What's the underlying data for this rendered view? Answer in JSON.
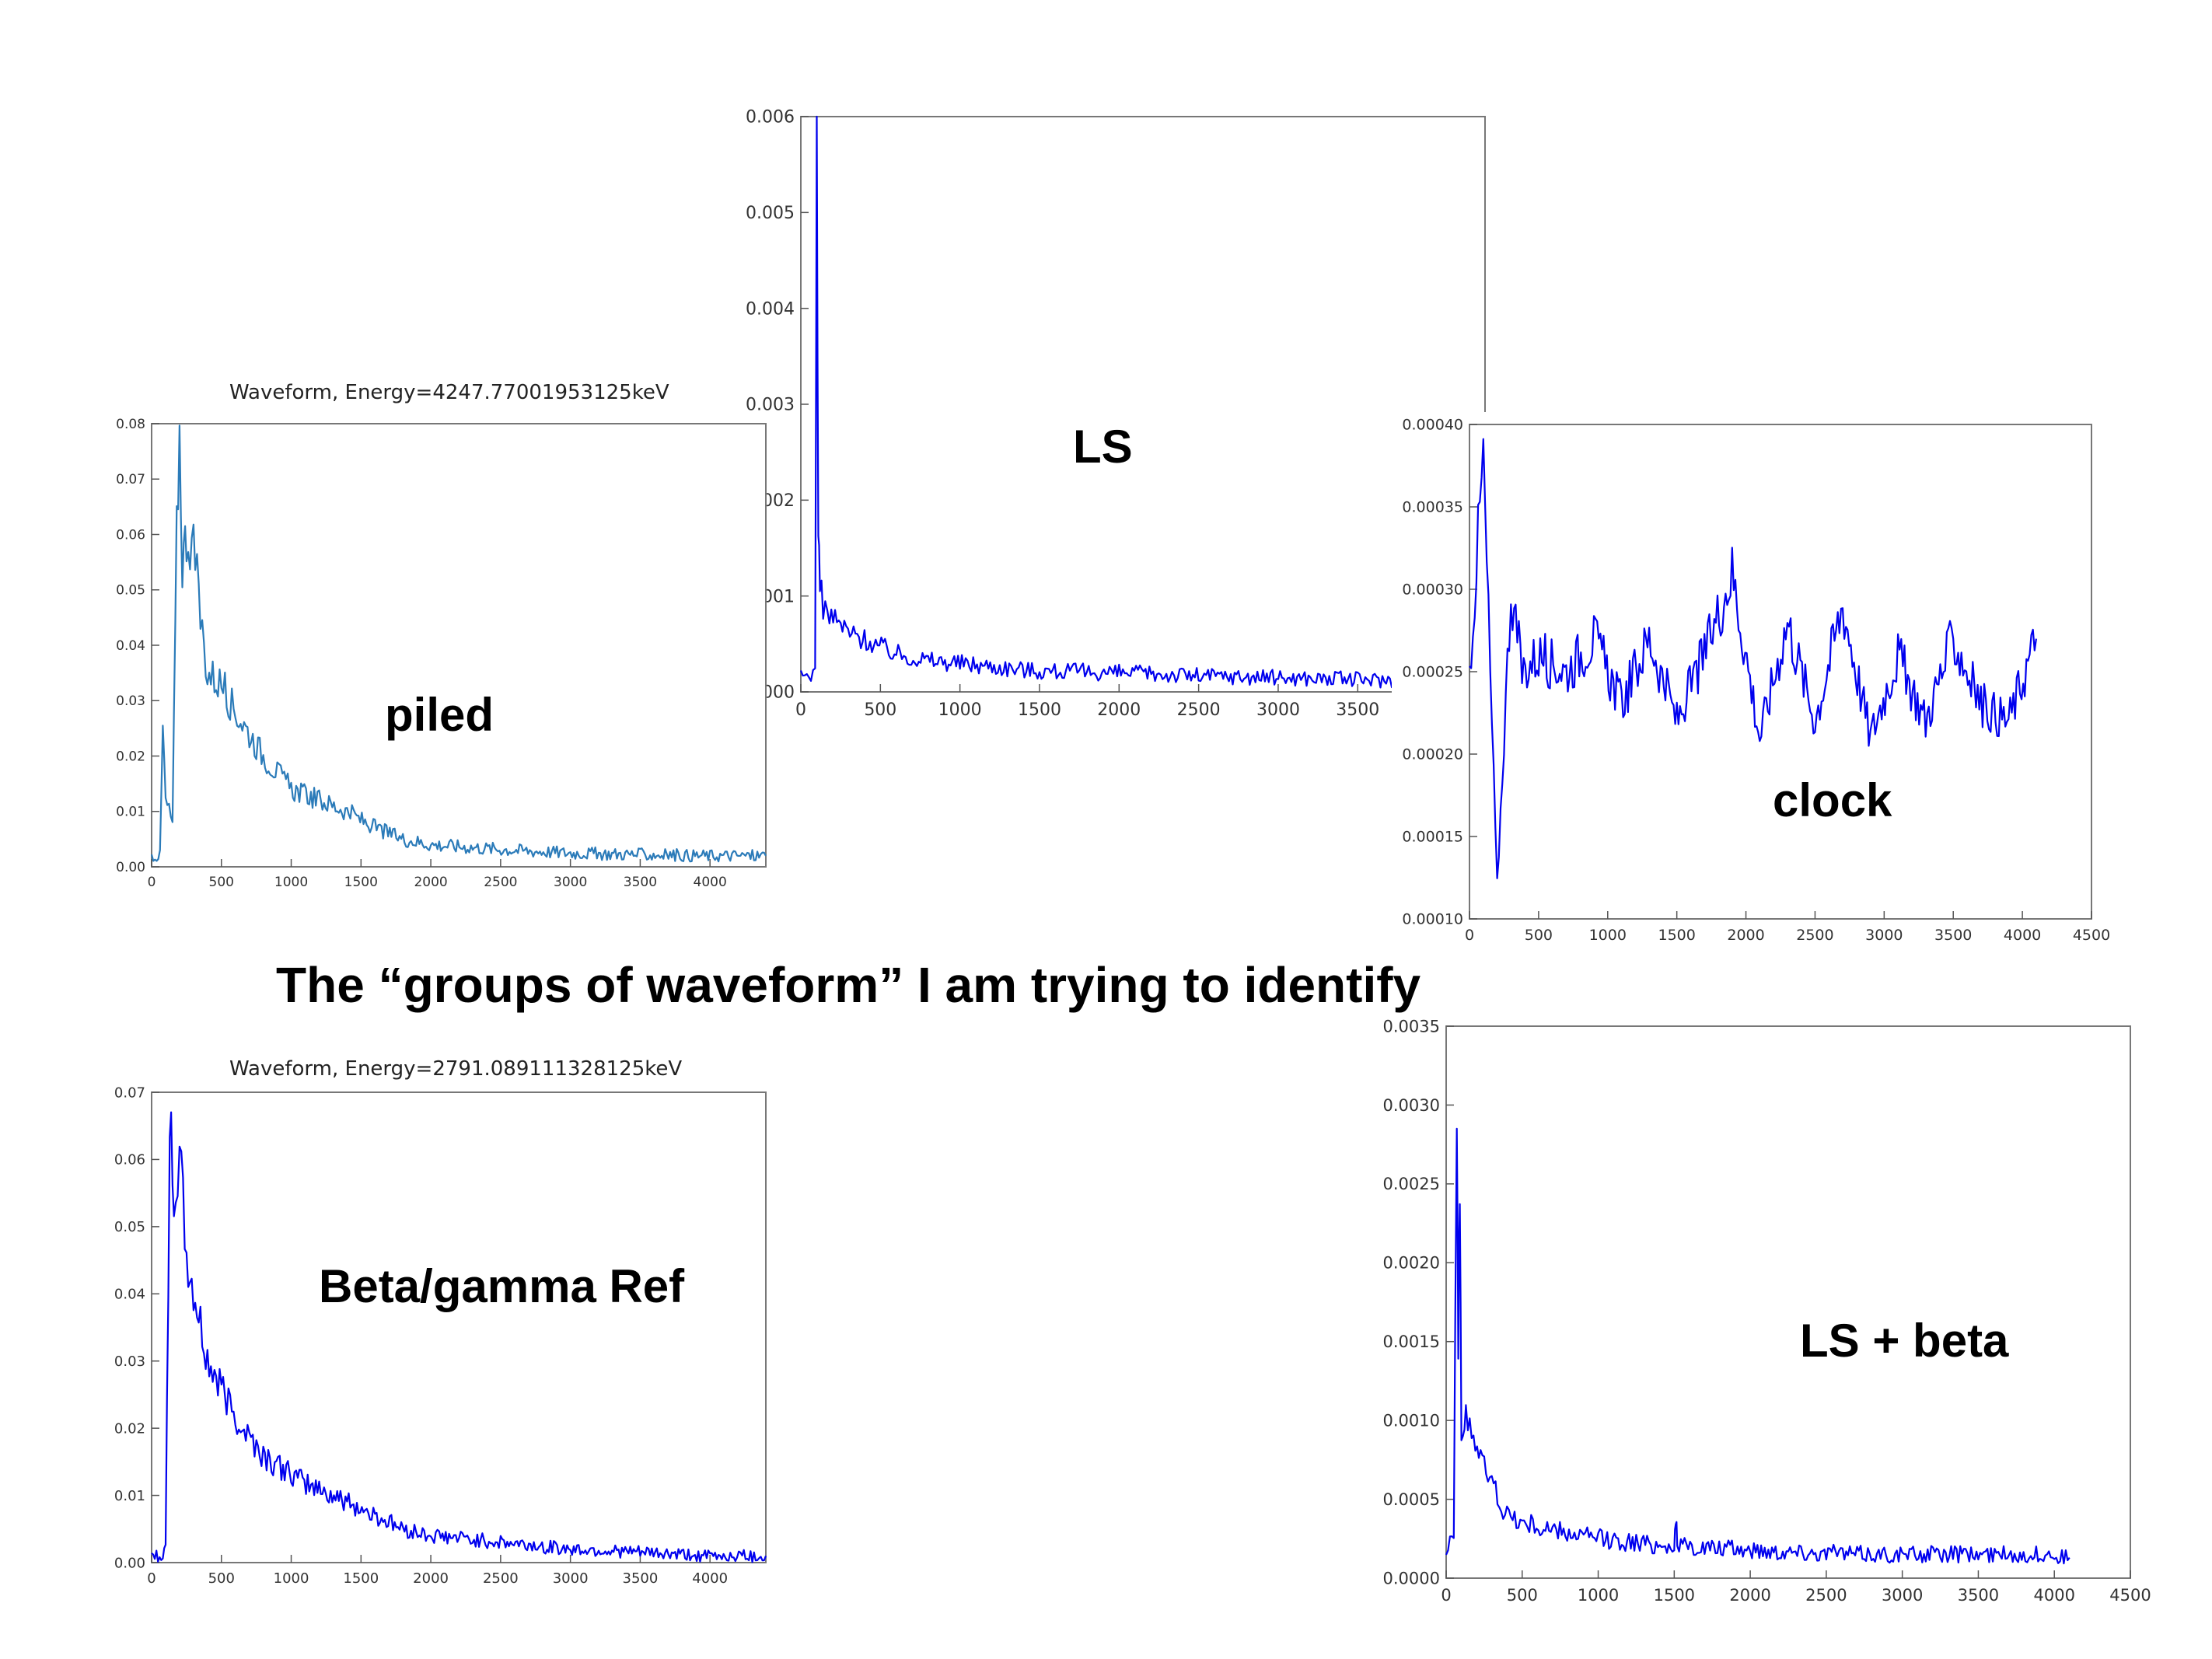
{
  "caption": "The “groups of waveform” I am trying to identify",
  "colors": {
    "blue": "#0000ee",
    "steel": "#2b7bb9",
    "axis": "#333333"
  },
  "chart_data": [
    {
      "id": "ls",
      "type": "line",
      "title": "",
      "label": "LS",
      "color": "#0000ee",
      "xlim": [
        0,
        4300
      ],
      "ylim": [
        0,
        0.006
      ],
      "xticks": [
        0,
        500,
        1000,
        1500,
        2000,
        2500,
        3000,
        3500,
        4000
      ],
      "xtick_labels": [
        "0",
        "500",
        "1000",
        "1500",
        "2000",
        "2500",
        "3000",
        "3500",
        "4000"
      ],
      "yticks": [
        0,
        0.001,
        0.002,
        0.003,
        0.004,
        0.005,
        0.006
      ],
      "ytick_labels": [
        "0.000",
        "0.001",
        "0.002",
        "0.003",
        "0.004",
        "0.005",
        "0.006"
      ],
      "x": [
        0,
        50,
        90,
        100,
        110,
        120,
        140,
        180,
        250,
        320,
        400,
        600,
        800,
        1000,
        1500,
        2000,
        2500,
        3000,
        3500,
        4000,
        4300
      ],
      "y": [
        0.00015,
        0.00018,
        0.0002,
        0.0059,
        0.0015,
        0.0012,
        0.0009,
        0.0008,
        0.0007,
        0.0006,
        0.00055,
        0.0004,
        0.00033,
        0.0003,
        0.00022,
        0.0002,
        0.00017,
        0.00015,
        0.00013,
        0.00012,
        0.00012
      ]
    },
    {
      "id": "piled",
      "type": "line",
      "title": "Waveform, Energy=4247.77001953125keV",
      "label": "piled",
      "color": "#2b7bb9",
      "xlim": [
        0,
        4400
      ],
      "ylim": [
        0,
        0.08
      ],
      "xticks": [
        0,
        500,
        1000,
        1500,
        2000,
        2500,
        3000,
        3500,
        4000
      ],
      "xtick_labels": [
        "0",
        "500",
        "1000",
        "1500",
        "2000",
        "2500",
        "3000",
        "3500",
        "4000"
      ],
      "yticks": [
        0,
        0.01,
        0.02,
        0.03,
        0.04,
        0.05,
        0.06,
        0.07,
        0.08
      ],
      "ytick_labels": [
        "0.00",
        "0.01",
        "0.02",
        "0.03",
        "0.04",
        "0.05",
        "0.06",
        "0.07",
        "0.08"
      ],
      "x": [
        0,
        60,
        80,
        100,
        150,
        180,
        200,
        220,
        250,
        300,
        350,
        400,
        500,
        600,
        700,
        800,
        900,
        1000,
        1200,
        1400,
        1600,
        1800,
        2000,
        2300,
        2600,
        3000,
        3500,
        4000,
        4400
      ],
      "y": [
        0.002,
        0.002,
        0.025,
        0.012,
        0.008,
        0.06,
        0.078,
        0.055,
        0.06,
        0.058,
        0.045,
        0.035,
        0.033,
        0.028,
        0.024,
        0.02,
        0.017,
        0.014,
        0.012,
        0.01,
        0.007,
        0.005,
        0.004,
        0.0035,
        0.003,
        0.0025,
        0.0022,
        0.002,
        0.002
      ]
    },
    {
      "id": "clock",
      "type": "line",
      "title": "",
      "label": "clock",
      "color": "#0000ee",
      "xlim": [
        0,
        4500
      ],
      "ylim": [
        0.0001,
        0.0004
      ],
      "xticks": [
        0,
        500,
        1000,
        1500,
        2000,
        2500,
        3000,
        3500,
        4000,
        4500
      ],
      "xtick_labels": [
        "0",
        "500",
        "1000",
        "1500",
        "2000",
        "2500",
        "3000",
        "3500",
        "4000",
        "4500"
      ],
      "yticks": [
        0.0001,
        0.00015,
        0.0002,
        0.00025,
        0.0003,
        0.00035,
        0.0004
      ],
      "ytick_labels": [
        "0.00010",
        "0.00015",
        "0.00020",
        "0.00025",
        "0.00030",
        "0.00035",
        "0.00040"
      ],
      "x": [
        0,
        100,
        200,
        300,
        380,
        500,
        700,
        900,
        1100,
        1300,
        1500,
        1700,
        1900,
        2100,
        2300,
        2500,
        2700,
        2900,
        3100,
        3300,
        3500,
        3700,
        3900,
        4100
      ],
      "y": [
        0.00025,
        0.00038,
        0.00012,
        0.0003,
        0.00025,
        0.00026,
        0.00025,
        0.00027,
        0.00023,
        0.00027,
        0.00022,
        0.00026,
        0.00031,
        0.00021,
        0.00028,
        0.00022,
        0.00029,
        0.00021,
        0.00026,
        0.00022,
        0.00027,
        0.00023,
        0.00022,
        0.00027
      ]
    },
    {
      "id": "beta_gamma",
      "type": "line",
      "title": "Waveform, Energy=2791.089111328125keV",
      "label": "Beta/gamma Ref",
      "color": "#0000ee",
      "xlim": [
        0,
        4400
      ],
      "ylim": [
        0,
        0.07
      ],
      "xticks": [
        0,
        500,
        1000,
        1500,
        2000,
        2500,
        3000,
        3500,
        4000
      ],
      "xtick_labels": [
        "0",
        "500",
        "1000",
        "1500",
        "2000",
        "2500",
        "3000",
        "3500",
        "4000"
      ],
      "yticks": [
        0,
        0.01,
        0.02,
        0.03,
        0.04,
        0.05,
        0.06,
        0.07
      ],
      "ytick_labels": [
        "0.00",
        "0.01",
        "0.02",
        "0.03",
        "0.04",
        "0.05",
        "0.06",
        "0.07"
      ],
      "x": [
        0,
        80,
        100,
        130,
        160,
        200,
        250,
        300,
        350,
        400,
        500,
        600,
        700,
        800,
        1000,
        1200,
        1400,
        1600,
        1800,
        2000,
        2500,
        3000,
        3500,
        4000,
        4400
      ],
      "y": [
        0.001,
        0.001,
        0.002,
        0.065,
        0.055,
        0.06,
        0.045,
        0.04,
        0.035,
        0.03,
        0.026,
        0.022,
        0.019,
        0.016,
        0.013,
        0.011,
        0.009,
        0.007,
        0.005,
        0.004,
        0.003,
        0.002,
        0.0015,
        0.001,
        0.001
      ]
    },
    {
      "id": "ls_beta",
      "type": "line",
      "title": "",
      "label": "LS + beta",
      "color": "#0000ee",
      "xlim": [
        0,
        4500
      ],
      "ylim": [
        0,
        0.0035
      ],
      "xticks": [
        0,
        500,
        1000,
        1500,
        2000,
        2500,
        3000,
        3500,
        4000,
        4500
      ],
      "xtick_labels": [
        "0",
        "500",
        "1000",
        "1500",
        "2000",
        "2500",
        "3000",
        "3500",
        "4000",
        "4500"
      ],
      "yticks": [
        0,
        0.0005,
        0.001,
        0.0015,
        0.002,
        0.0025,
        0.003,
        0.0035
      ],
      "ytick_labels": [
        "0.0000",
        "0.0005",
        "0.0010",
        "0.0015",
        "0.0020",
        "0.0025",
        "0.0030",
        "0.0035"
      ],
      "x": [
        0,
        50,
        70,
        80,
        90,
        100,
        130,
        180,
        250,
        300,
        400,
        500,
        700,
        1000,
        1500,
        1510,
        1520,
        2000,
        2500,
        3000,
        3500,
        4000,
        4100
      ],
      "y": [
        0.0002,
        0.0003,
        0.003,
        0.0015,
        0.0024,
        0.0008,
        0.0011,
        0.0009,
        0.0007,
        0.0006,
        0.0004,
        0.00035,
        0.0003,
        0.00025,
        0.0002,
        0.0004,
        0.0002,
        0.00018,
        0.00016,
        0.00015,
        0.00015,
        0.00015,
        0.00013
      ]
    }
  ]
}
